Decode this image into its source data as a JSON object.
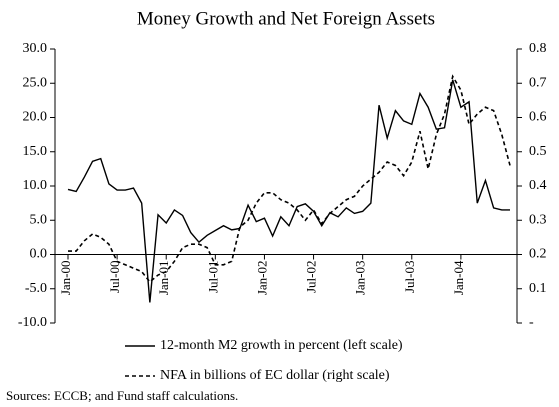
{
  "chart_data": {
    "type": "line",
    "title": "Money Growth and Net Foreign Assets",
    "source": "Sources: ECCB; and Fund staff calculations.",
    "categories": [
      "Jan-00",
      null,
      null,
      null,
      null,
      null,
      "Jul-00",
      null,
      null,
      null,
      null,
      null,
      "Jan-01",
      null,
      null,
      null,
      null,
      null,
      "Jul-01",
      null,
      null,
      null,
      null,
      null,
      "Jan-02",
      null,
      null,
      null,
      null,
      null,
      "Jul-02",
      null,
      null,
      null,
      null,
      null,
      "Jan-03",
      null,
      null,
      null,
      null,
      null,
      "Jul-03",
      null,
      null,
      null,
      null,
      null,
      "Jan-04",
      null,
      null,
      null,
      null,
      null,
      null
    ],
    "series": [
      {
        "name": "12-month M2 growth in percent (left scale)",
        "color": "#000000",
        "line_style": "solid",
        "axis": "y",
        "values": [
          9.5,
          9.2,
          11.3,
          13.6,
          14.0,
          10.3,
          9.4,
          9.4,
          9.7,
          7.5,
          -7.0,
          5.8,
          4.6,
          6.5,
          5.7,
          3.2,
          1.8,
          2.8,
          3.5,
          4.2,
          3.6,
          3.8,
          7.2,
          4.8,
          5.3,
          2.7,
          5.5,
          4.2,
          7.0,
          7.4,
          6.3,
          4.2,
          6.1,
          5.5,
          6.8,
          6.0,
          6.3,
          7.5,
          21.8,
          17.0,
          21.0,
          19.5,
          19.0,
          23.5,
          21.5,
          18.3,
          18.5,
          25.5,
          21.5,
          22.3,
          7.5,
          10.8,
          6.8,
          6.5,
          6.5
        ]
      },
      {
        "name": "NFA in billions of EC dollar (right scale)",
        "color": "#000000",
        "line_style": "dashed",
        "axis": "y2",
        "values": [
          0.21,
          0.21,
          0.24,
          0.26,
          0.25,
          0.23,
          0.18,
          0.17,
          0.16,
          0.15,
          0.12,
          0.14,
          0.15,
          0.18,
          0.22,
          0.23,
          0.23,
          0.22,
          0.17,
          0.17,
          0.18,
          0.28,
          0.3,
          0.35,
          0.38,
          0.38,
          0.36,
          0.35,
          0.33,
          0.3,
          0.33,
          0.29,
          0.32,
          0.34,
          0.36,
          0.37,
          0.4,
          0.42,
          0.44,
          0.47,
          0.46,
          0.43,
          0.47,
          0.56,
          0.45,
          0.55,
          0.61,
          0.72,
          0.68,
          0.58,
          0.61,
          0.63,
          0.62,
          0.55,
          0.46
        ]
      }
    ],
    "ylim": [
      -10,
      30
    ],
    "yticks": [
      {
        "value": -10,
        "label": "-10.0"
      },
      {
        "value": -5,
        "label": "-5.0"
      },
      {
        "value": 0,
        "label": "0.0"
      },
      {
        "value": 5,
        "label": "5.0"
      },
      {
        "value": 10,
        "label": "10.0"
      },
      {
        "value": 15,
        "label": "15.0"
      },
      {
        "value": 20,
        "label": "20.0"
      },
      {
        "value": 25,
        "label": "25.0"
      },
      {
        "value": 30,
        "label": "30.0"
      }
    ],
    "y2lim": [
      0,
      0.8
    ],
    "y2ticks": [
      {
        "value": 0,
        "label": "-"
      },
      0.1,
      0.2,
      0.3,
      0.4,
      0.5,
      0.6,
      0.7,
      0.8
    ],
    "grid": false
  }
}
